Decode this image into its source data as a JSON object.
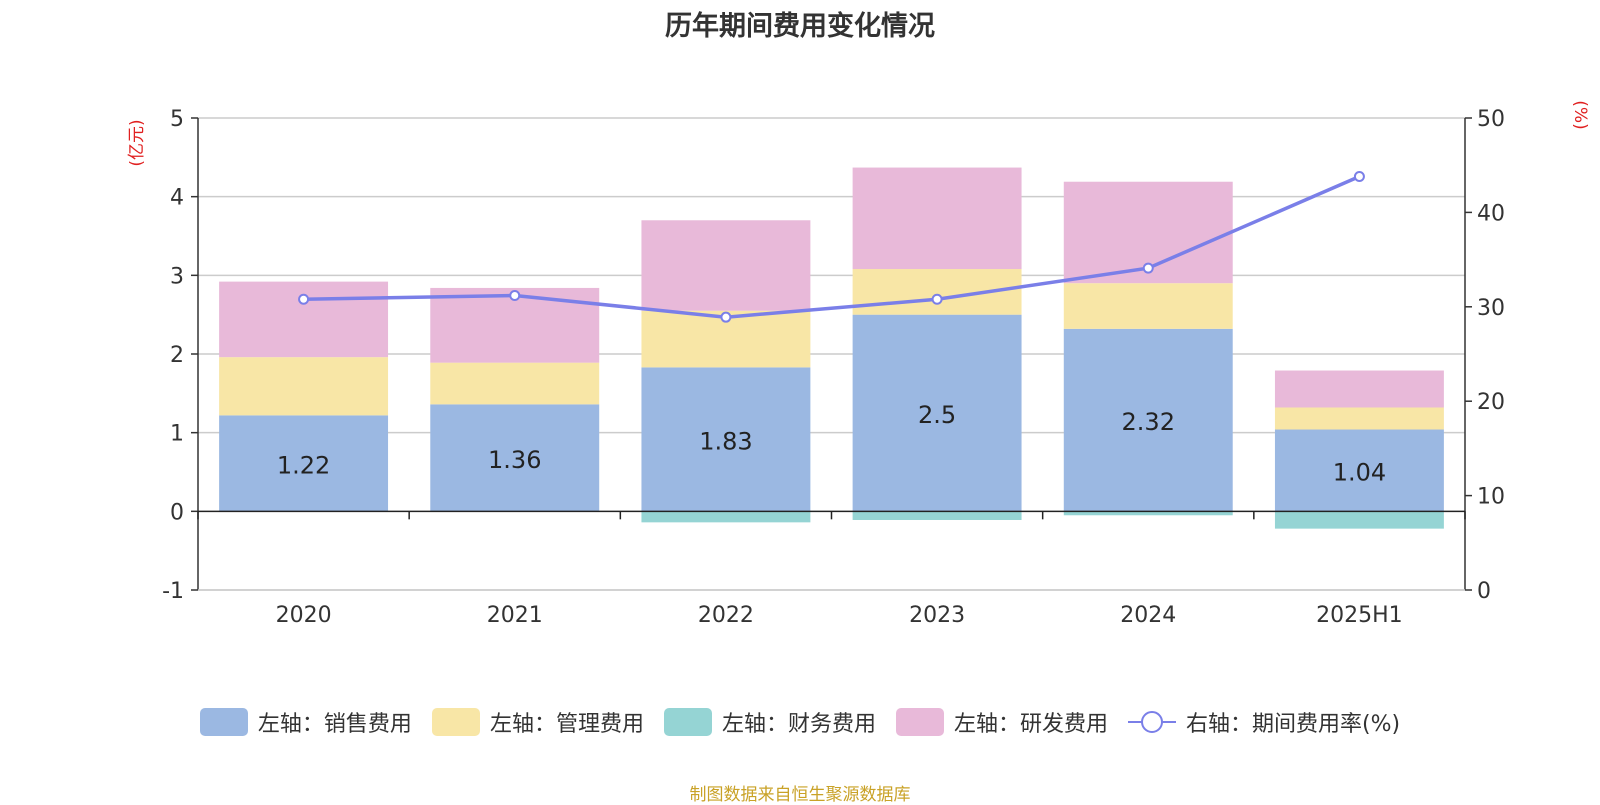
{
  "chart_data": {
    "type": "bar",
    "title": "历年期间费用变化情况",
    "categories": [
      "2020",
      "2021",
      "2022",
      "2023",
      "2024",
      "2025H1"
    ],
    "y_left_unit": "(亿元)",
    "y_right_unit": "(%)",
    "y_left_ticks": [
      "5",
      "4",
      "3",
      "2",
      "1",
      "0",
      "-1"
    ],
    "y_right_ticks": [
      "50",
      "40",
      "30",
      "20",
      "10",
      "0"
    ],
    "ylim_left": [
      -1,
      5
    ],
    "ylim_right": [
      0,
      50
    ],
    "stacked": true,
    "series": [
      {
        "name": "左轴：销售费用",
        "color": "#9bb8e2",
        "values": [
          1.22,
          1.36,
          1.83,
          2.5,
          2.32,
          1.04
        ],
        "show_labels": true
      },
      {
        "name": "左轴：管理费用",
        "color": "#f8e6a6",
        "values": [
          0.74,
          0.53,
          0.72,
          0.58,
          0.58,
          0.28
        ]
      },
      {
        "name": "左轴：财务费用",
        "color": "#95d4d4",
        "values": [
          0.0,
          0.0,
          -0.14,
          -0.11,
          -0.05,
          -0.22
        ]
      },
      {
        "name": "左轴：研发费用",
        "color": "#e8b9d9",
        "values": [
          0.96,
          0.95,
          1.15,
          1.29,
          1.29,
          0.47
        ]
      },
      {
        "name": "右轴：期间费用率(%)",
        "color": "#7a7fe8",
        "type": "line",
        "axis": "right",
        "values": [
          30.8,
          31.2,
          28.9,
          30.8,
          34.1,
          43.8
        ]
      }
    ],
    "grid": true,
    "legend_position": "bottom"
  },
  "source_note": "制图数据来自恒生聚源数据库"
}
